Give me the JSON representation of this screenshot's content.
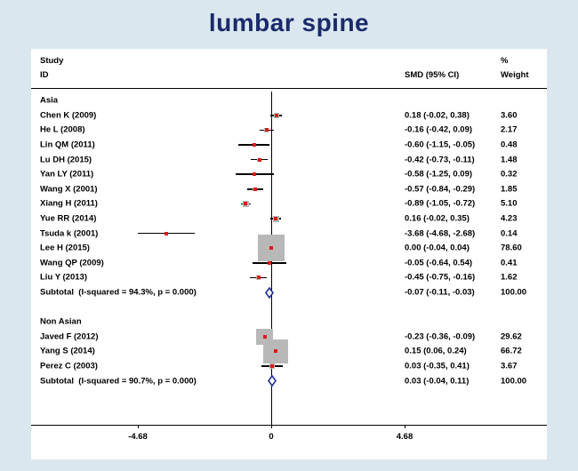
{
  "title": "lumbar spine",
  "colors": {
    "background": "#dbe7ef",
    "panel": "#ffffff",
    "title_text": "#1b2a6b",
    "weight_square": "#b8b8b8",
    "point_estimate": "#e01818",
    "diamond": "#1f3096",
    "line": "#000000"
  },
  "header": {
    "study": "Study",
    "id": "ID",
    "percent": "%",
    "smd_ci": "SMD (95% CI)",
    "weight": "Weight"
  },
  "axis": {
    "tick_labels": [
      "-4.68",
      "0",
      "4.68"
    ],
    "tick_values": [
      -4.68,
      0,
      4.68
    ]
  },
  "chart_data": {
    "type": "forest",
    "title": "lumbar spine",
    "xlabel": "SMD",
    "xlim": [
      -4.68,
      4.68
    ],
    "zero_line": 0,
    "groups": [
      {
        "name": "Asia",
        "studies": [
          {
            "label": "Chen K (2009)",
            "smd": 0.18,
            "lo": -0.02,
            "hi": 0.38,
            "ci_text": "0.18 (-0.02, 0.38)",
            "weight": 3.6,
            "weight_text": "3.60"
          },
          {
            "label": "He L (2008)",
            "smd": -0.16,
            "lo": -0.42,
            "hi": 0.09,
            "ci_text": "-0.16 (-0.42, 0.09)",
            "weight": 2.17,
            "weight_text": "2.17"
          },
          {
            "label": "Lin QM (2011)",
            "smd": -0.6,
            "lo": -1.15,
            "hi": -0.05,
            "ci_text": "-0.60 (-1.15, -0.05)",
            "weight": 0.48,
            "weight_text": "0.48"
          },
          {
            "label": "Lu DH (2015)",
            "smd": -0.42,
            "lo": -0.73,
            "hi": -0.11,
            "ci_text": "-0.42 (-0.73, -0.11)",
            "weight": 1.48,
            "weight_text": "1.48"
          },
          {
            "label": "Yan LY (2011)",
            "smd": -0.58,
            "lo": -1.25,
            "hi": 0.09,
            "ci_text": "-0.58 (-1.25, 0.09)",
            "weight": 0.32,
            "weight_text": "0.32"
          },
          {
            "label": "Wang X (2001)",
            "smd": -0.57,
            "lo": -0.84,
            "hi": -0.29,
            "ci_text": "-0.57 (-0.84, -0.29)",
            "weight": 1.85,
            "weight_text": "1.85"
          },
          {
            "label": "Xiang H (2011)",
            "smd": -0.89,
            "lo": -1.05,
            "hi": -0.72,
            "ci_text": "-0.89 (-1.05, -0.72)",
            "weight": 5.1,
            "weight_text": "5.10"
          },
          {
            "label": "Yue RR (2014)",
            "smd": 0.16,
            "lo": -0.02,
            "hi": 0.35,
            "ci_text": "0.16 (-0.02, 0.35)",
            "weight": 4.23,
            "weight_text": "4.23"
          },
          {
            "label": "Tsuda k (2001)",
            "smd": -3.68,
            "lo": -4.68,
            "hi": -2.68,
            "ci_text": "-3.68 (-4.68, -2.68)",
            "weight": 0.14,
            "weight_text": "0.14"
          },
          {
            "label": "Lee H (2015)",
            "smd": 0.0,
            "lo": -0.04,
            "hi": 0.04,
            "ci_text": "0.00 (-0.04, 0.04)",
            "weight": 78.6,
            "weight_text": "78.60"
          },
          {
            "label": "Wang QP (2009)",
            "smd": -0.05,
            "lo": -0.64,
            "hi": 0.54,
            "ci_text": "-0.05 (-0.64, 0.54)",
            "weight": 0.41,
            "weight_text": "0.41"
          },
          {
            "label": "Liu Y (2013)",
            "smd": -0.45,
            "lo": -0.75,
            "hi": -0.16,
            "ci_text": "-0.45 (-0.75, -0.16)",
            "weight": 1.62,
            "weight_text": "1.62"
          }
        ],
        "subtotal": {
          "label": "Subtotal  (I-squared = 94.3%, p = 0.000)",
          "smd": -0.07,
          "lo": -0.11,
          "hi": -0.03,
          "ci_text": "-0.07 (-0.11, -0.03)",
          "weight_text": "100.00"
        }
      },
      {
        "name": "Non Asian",
        "studies": [
          {
            "label": "Javed F (2012)",
            "smd": -0.23,
            "lo": -0.36,
            "hi": -0.09,
            "ci_text": "-0.23 (-0.36, -0.09)",
            "weight": 29.62,
            "weight_text": "29.62"
          },
          {
            "label": "Yang S (2014)",
            "smd": 0.15,
            "lo": 0.06,
            "hi": 0.24,
            "ci_text": "0.15 (0.06, 0.24)",
            "weight": 66.72,
            "weight_text": "66.72"
          },
          {
            "label": "Perez C (2003)",
            "smd": 0.03,
            "lo": -0.35,
            "hi": 0.41,
            "ci_text": "0.03 (-0.35, 0.41)",
            "weight": 3.67,
            "weight_text": "3.67"
          }
        ],
        "subtotal": {
          "label": "Subtotal  (I-squared = 90.7%, p = 0.000)",
          "smd": 0.03,
          "lo": -0.04,
          "hi": 0.11,
          "ci_text": "0.03 (-0.04, 0.11)",
          "weight_text": "100.00"
        }
      }
    ]
  }
}
